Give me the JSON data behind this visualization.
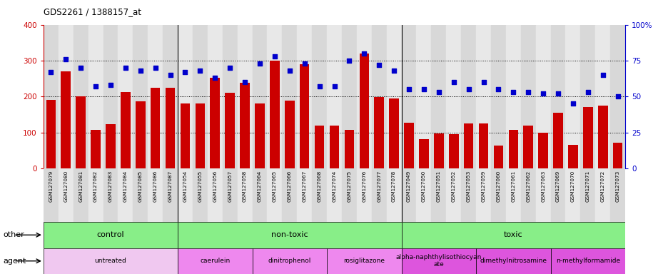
{
  "title": "GDS2261 / 1388157_at",
  "samples": [
    "GSM127079",
    "GSM127080",
    "GSM127081",
    "GSM127082",
    "GSM127083",
    "GSM127084",
    "GSM127085",
    "GSM127086",
    "GSM127087",
    "GSM127054",
    "GSM127055",
    "GSM127056",
    "GSM127057",
    "GSM127058",
    "GSM127064",
    "GSM127065",
    "GSM127066",
    "GSM127067",
    "GSM127068",
    "GSM127074",
    "GSM127075",
    "GSM127076",
    "GSM127077",
    "GSM127078",
    "GSM127049",
    "GSM127050",
    "GSM127051",
    "GSM127052",
    "GSM127053",
    "GSM127059",
    "GSM127060",
    "GSM127061",
    "GSM127062",
    "GSM127063",
    "GSM127069",
    "GSM127070",
    "GSM127071",
    "GSM127072",
    "GSM127073"
  ],
  "counts": [
    190,
    270,
    200,
    107,
    124,
    213,
    186,
    225,
    225,
    180,
    180,
    252,
    210,
    238,
    180,
    300,
    188,
    290,
    120,
    120,
    108,
    320,
    198,
    195,
    128,
    82,
    98,
    95,
    125,
    125,
    63,
    107,
    120,
    100,
    156,
    65,
    170,
    175,
    72
  ],
  "percentile": [
    67,
    76,
    70,
    57,
    58,
    70,
    68,
    70,
    65,
    67,
    68,
    63,
    70,
    60,
    73,
    78,
    68,
    73,
    57,
    57,
    75,
    80,
    72,
    68,
    55,
    55,
    53,
    60,
    55,
    60,
    55,
    53,
    53,
    52,
    52,
    45,
    53,
    65,
    50
  ],
  "bar_color": "#cc0000",
  "dot_color": "#0000cc",
  "ylim_left": [
    0,
    400
  ],
  "ylim_right": [
    0,
    100
  ],
  "yticks_left": [
    0,
    100,
    200,
    300,
    400
  ],
  "yticks_right": [
    0,
    25,
    50,
    75,
    100
  ],
  "hlines": [
    100,
    200,
    300
  ],
  "group_separators": [
    9,
    24
  ],
  "agent_separators": [
    9,
    14,
    19,
    24,
    29,
    34
  ],
  "groups_other": [
    {
      "label": "control",
      "start": 0,
      "end": 9,
      "color": "#88ee88"
    },
    {
      "label": "non-toxic",
      "start": 9,
      "end": 24,
      "color": "#88ee88"
    },
    {
      "label": "toxic",
      "start": 24,
      "end": 39,
      "color": "#88ee88"
    }
  ],
  "groups_agent": [
    {
      "label": "untreated",
      "start": 0,
      "end": 9,
      "color": "#f0c8f0"
    },
    {
      "label": "caerulein",
      "start": 9,
      "end": 14,
      "color": "#ee88ee"
    },
    {
      "label": "dinitrophenol",
      "start": 14,
      "end": 19,
      "color": "#ee88ee"
    },
    {
      "label": "rosiglitazone",
      "start": 19,
      "end": 24,
      "color": "#ee88ee"
    },
    {
      "label": "alpha-naphthylisothiocyan\nate",
      "start": 24,
      "end": 29,
      "color": "#dd55dd"
    },
    {
      "label": "dimethylnitrosamine",
      "start": 29,
      "end": 34,
      "color": "#dd55dd"
    },
    {
      "label": "n-methylformamide",
      "start": 34,
      "end": 39,
      "color": "#dd55dd"
    }
  ],
  "tick_bg_odd": "#e8e8e8",
  "tick_bg_even": "#d8d8d8"
}
